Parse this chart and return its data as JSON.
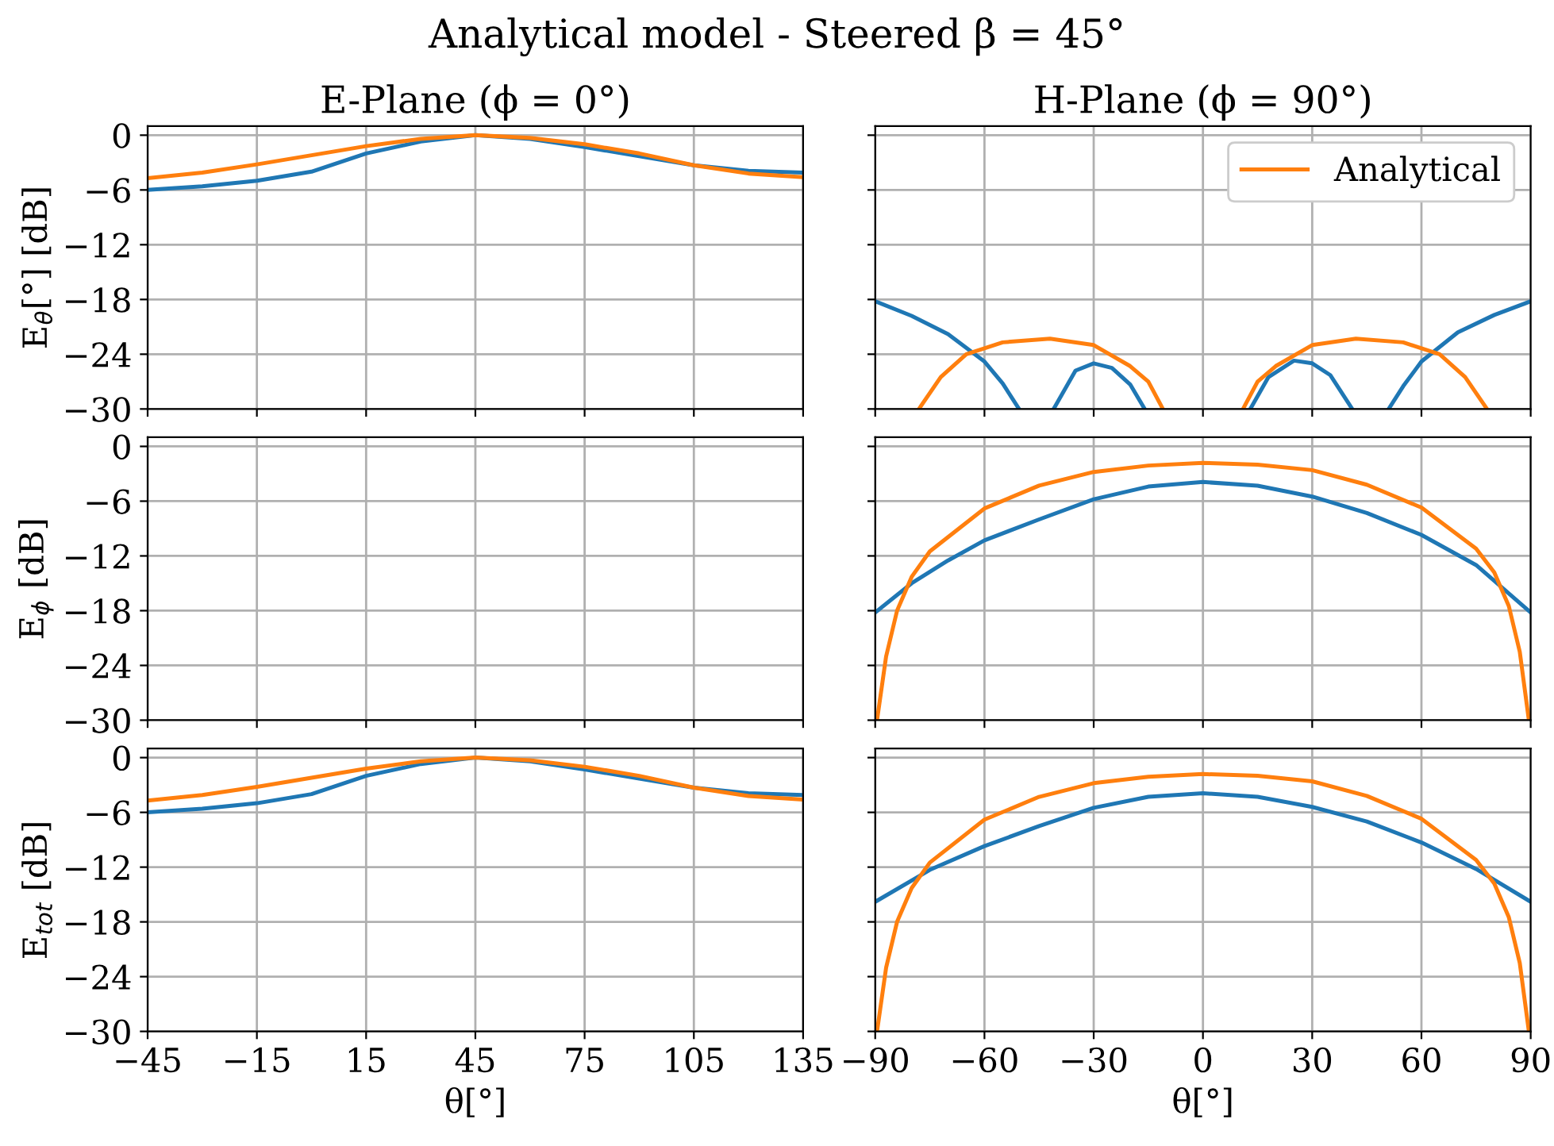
{
  "chart_data": [
    {
      "type": "line",
      "title": "Analytical model - Steered β = 45°",
      "subtitle": "E-Plane (ϕ = 0°)",
      "ylabel": "E$_{θ}$[°] [dB]",
      "xlim": [
        -45,
        135
      ],
      "xticks": [
        {
          "value": -45,
          "label": null
        },
        {
          "value": -15,
          "label": null
        },
        {
          "value": 15,
          "label": null
        },
        {
          "value": 45,
          "label": null
        },
        {
          "value": 75,
          "label": null
        },
        {
          "value": 105,
          "label": null
        },
        {
          "value": 135,
          "label": null
        }
      ],
      "ylim": [
        -30,
        1
      ],
      "yticks": [
        {
          "value": -30,
          "label": "−30"
        },
        {
          "value": -24,
          "label": "−24"
        },
        {
          "value": -18,
          "label": "−18"
        },
        {
          "value": -12,
          "label": "−12"
        },
        {
          "value": -6,
          "label": "−6"
        },
        0
      ],
      "grid": true,
      "tick_labels": "y",
      "series": [
        {
          "color": "#1f77b4",
          "x": [
            -45,
            -30,
            -15,
            0,
            15,
            30,
            45,
            60,
            75,
            90,
            105,
            120,
            135
          ],
          "values": [
            -6.0,
            -5.6,
            -5.0,
            -4.0,
            -2.0,
            -0.7,
            0,
            -0.4,
            -1.3,
            -2.3,
            -3.3,
            -3.9,
            -4.1
          ]
        },
        {
          "color": "#ff7f0e",
          "x": [
            -45,
            -30,
            -15,
            0,
            15,
            30,
            45,
            60,
            75,
            90,
            105,
            120,
            135
          ],
          "values": [
            -4.7,
            -4.1,
            -3.2,
            -2.2,
            -1.2,
            -0.4,
            0,
            -0.3,
            -1.0,
            -2.0,
            -3.3,
            -4.2,
            -4.6
          ]
        }
      ]
    },
    {
      "type": "line",
      "subtitle": "H-Plane (ϕ = 90°)",
      "xlim": [
        -90,
        90
      ],
      "xticks": [
        {
          "value": -90,
          "label": null
        },
        {
          "value": -60,
          "label": null
        },
        {
          "value": -30,
          "label": null
        },
        {
          "value": 0,
          "label": null
        },
        {
          "value": 30,
          "label": null
        },
        {
          "value": 60,
          "label": null
        },
        {
          "value": 90,
          "label": null
        }
      ],
      "ylim": [
        -30,
        1
      ],
      "yticks": [
        {
          "value": -30,
          "label": null
        },
        {
          "value": -24,
          "label": null
        },
        {
          "value": -18,
          "label": null
        },
        {
          "value": -12,
          "label": null
        },
        {
          "value": -6,
          "label": null
        },
        {
          "value": 0,
          "label": null
        }
      ],
      "grid": true,
      "tick_labels": false,
      "legend": "top right",
      "series": [
        {
          "color": "#1f77b4",
          "x": [
            -90,
            -80,
            -70,
            -60,
            -55,
            -50.5,
            -46,
            -41,
            -35,
            -30,
            -25,
            -20,
            -16,
            0,
            13,
            18,
            25,
            30,
            35,
            41,
            46,
            51,
            55,
            60,
            70,
            80,
            90
          ],
          "values": [
            -18.2,
            -19.8,
            -21.8,
            -24.8,
            -27.2,
            -30,
            null,
            -30,
            -25.8,
            -25.0,
            -25.5,
            -27.3,
            -30,
            null,
            -30,
            -26.5,
            -24.7,
            -25.0,
            -26.3,
            -30,
            null,
            -30,
            -27.5,
            -24.8,
            -21.6,
            -19.7,
            -18.2
          ]
        },
        {
          "name": "Analytical",
          "color": "#ff7f0e",
          "x": [
            -78,
            -72,
            -65,
            -55,
            -42,
            -30,
            -20,
            -15,
            -11,
            0,
            11,
            15,
            20,
            30,
            42,
            55,
            65,
            72,
            78
          ],
          "values": [
            -30,
            -26.5,
            -24.0,
            -22.7,
            -22.3,
            -23.0,
            -25.3,
            -27.0,
            -30,
            null,
            -30,
            -27.0,
            -25.3,
            -23.0,
            -22.3,
            -22.7,
            -24.0,
            -26.5,
            -30
          ]
        }
      ]
    },
    {
      "type": "line",
      "ylabel": "E$_{ϕ}$ [dB]",
      "xlim": [
        -45,
        135
      ],
      "xticks": [
        {
          "value": -45,
          "label": null
        },
        {
          "value": -15,
          "label": null
        },
        {
          "value": 15,
          "label": null
        },
        {
          "value": 45,
          "label": null
        },
        {
          "value": 75,
          "label": null
        },
        {
          "value": 105,
          "label": null
        },
        {
          "value": 135,
          "label": null
        }
      ],
      "ylim": [
        -30,
        1
      ],
      "yticks": [
        {
          "value": -30,
          "label": "−30"
        },
        {
          "value": -24,
          "label": "−24"
        },
        {
          "value": -18,
          "label": "−18"
        },
        {
          "value": -12,
          "label": "−12"
        },
        {
          "value": -6,
          "label": "−6"
        },
        0
      ],
      "grid": true,
      "tick_labels": "y"
    },
    {
      "type": "line",
      "xlim": [
        -90,
        90
      ],
      "xticks": [
        {
          "value": -90,
          "label": null
        },
        {
          "value": -60,
          "label": null
        },
        {
          "value": -30,
          "label": null
        },
        {
          "value": 0,
          "label": null
        },
        {
          "value": 30,
          "label": null
        },
        {
          "value": 60,
          "label": null
        },
        {
          "value": 90,
          "label": null
        }
      ],
      "ylim": [
        -30,
        1
      ],
      "yticks": [
        {
          "value": -30,
          "label": null
        },
        {
          "value": -24,
          "label": null
        },
        {
          "value": -18,
          "label": null
        },
        {
          "value": -12,
          "label": null
        },
        {
          "value": -6,
          "label": null
        },
        {
          "value": 0,
          "label": null
        }
      ],
      "grid": true,
      "tick_labels": false,
      "series": [
        {
          "color": "#1f77b4",
          "x": [
            -90,
            -80,
            -70,
            -60,
            -45,
            -30,
            -15,
            0,
            15,
            30,
            45,
            60,
            75,
            90
          ],
          "values": [
            -18.2,
            -15.0,
            -12.5,
            -10.3,
            -8.0,
            -5.8,
            -4.4,
            -3.9,
            -4.3,
            -5.5,
            -7.3,
            -9.7,
            -13.0,
            -18.2
          ]
        },
        {
          "color": "#ff7f0e",
          "x": [
            -89.5,
            -87,
            -84,
            -80,
            -75,
            -60,
            -45,
            -30,
            -15,
            0,
            15,
            30,
            45,
            60,
            75,
            80,
            84,
            87,
            89.5
          ],
          "values": [
            -30,
            -23,
            -18,
            -14.3,
            -11.5,
            -6.8,
            -4.3,
            -2.8,
            -2.1,
            -1.8,
            -2.0,
            -2.6,
            -4.2,
            -6.7,
            -11.2,
            -13.8,
            -17.5,
            -22.5,
            -30
          ]
        }
      ]
    },
    {
      "type": "line",
      "ylabel": "E$_{tot}$ [dB]",
      "xlabel": "θ[°]",
      "xlim": [
        -45,
        135
      ],
      "xticks": [
        {
          "value": -45,
          "label": "−45"
        },
        {
          "value": -15,
          "label": "−15"
        },
        15,
        45,
        75,
        105,
        135
      ],
      "ylim": [
        -30,
        1
      ],
      "yticks": [
        {
          "value": -30,
          "label": "−30"
        },
        {
          "value": -24,
          "label": "−24"
        },
        {
          "value": -18,
          "label": "−18"
        },
        {
          "value": -12,
          "label": "−12"
        },
        {
          "value": -6,
          "label": "−6"
        },
        0
      ],
      "grid": true,
      "series": [
        {
          "color": "#1f77b4",
          "x": [
            -45,
            -30,
            -15,
            0,
            15,
            30,
            45,
            60,
            75,
            90,
            105,
            120,
            135
          ],
          "values": [
            -6.0,
            -5.6,
            -5.0,
            -4.0,
            -2.0,
            -0.7,
            0,
            -0.4,
            -1.3,
            -2.3,
            -3.3,
            -3.9,
            -4.1
          ]
        },
        {
          "color": "#ff7f0e",
          "x": [
            -45,
            -30,
            -15,
            0,
            15,
            30,
            45,
            60,
            75,
            90,
            105,
            120,
            135
          ],
          "values": [
            -4.7,
            -4.1,
            -3.2,
            -2.2,
            -1.2,
            -0.4,
            0,
            -0.3,
            -1.0,
            -2.0,
            -3.3,
            -4.2,
            -4.6
          ]
        }
      ]
    },
    {
      "type": "line",
      "xlabel": "θ[°]",
      "xlim": [
        -90,
        90
      ],
      "xticks": [
        {
          "value": -90,
          "label": "−90"
        },
        {
          "value": -60,
          "label": "−60"
        },
        {
          "value": -30,
          "label": "−30"
        },
        0,
        30,
        60,
        90
      ],
      "ylim": [
        -30,
        1
      ],
      "yticks": [
        {
          "value": -30,
          "label": null
        },
        {
          "value": -24,
          "label": null
        },
        {
          "value": -18,
          "label": null
        },
        {
          "value": -12,
          "label": null
        },
        {
          "value": -6,
          "label": null
        },
        {
          "value": 0,
          "label": null
        }
      ],
      "grid": true,
      "tick_labels": "x",
      "series": [
        {
          "color": "#1f77b4",
          "x": [
            -90,
            -75,
            -60,
            -45,
            -30,
            -15,
            0,
            15,
            30,
            45,
            60,
            75,
            90
          ],
          "values": [
            -15.8,
            -12.3,
            -9.7,
            -7.5,
            -5.5,
            -4.3,
            -3.9,
            -4.3,
            -5.4,
            -7.0,
            -9.3,
            -12.2,
            -15.8
          ]
        },
        {
          "color": "#ff7f0e",
          "x": [
            -89.5,
            -87,
            -84,
            -80,
            -75,
            -60,
            -45,
            -30,
            -15,
            0,
            15,
            30,
            45,
            60,
            75,
            80,
            84,
            87,
            89.5
          ],
          "values": [
            -30,
            -23,
            -18,
            -14.3,
            -11.5,
            -6.8,
            -4.3,
            -2.8,
            -2.1,
            -1.8,
            -2.0,
            -2.6,
            -4.2,
            -6.7,
            -11.2,
            -13.8,
            -17.5,
            -22.5,
            -30
          ]
        }
      ]
    }
  ]
}
